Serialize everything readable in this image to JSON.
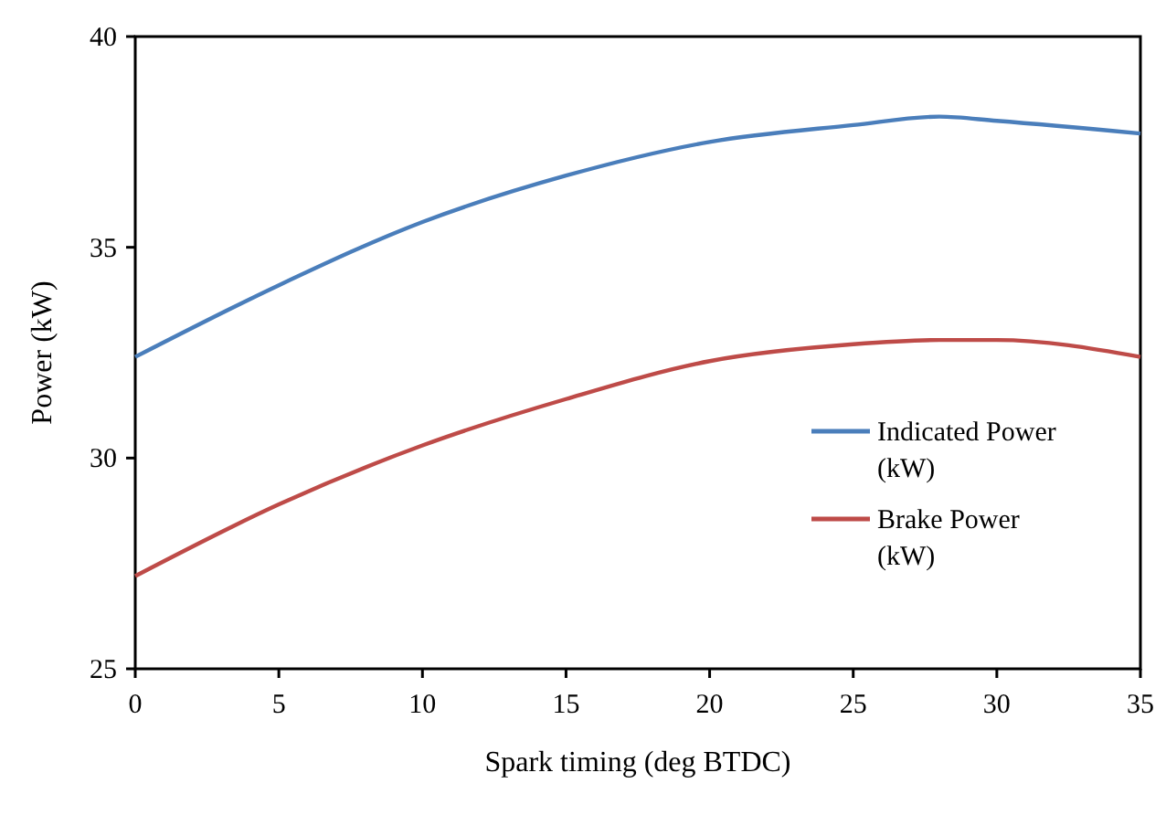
{
  "chart_data": {
    "type": "line",
    "xlabel": "Spark timing (deg BTDC)",
    "ylabel": "Power (kW)",
    "x": [
      0,
      5,
      10,
      15,
      20,
      25,
      28,
      30,
      35
    ],
    "series": [
      {
        "name": "Indicated Power (kW)",
        "color": "#4a7ebb",
        "values": [
          32.4,
          34.1,
          35.6,
          36.7,
          37.5,
          37.9,
          38.1,
          38.0,
          37.7
        ]
      },
      {
        "name": "Brake Power (kW)",
        "color": "#be4b48",
        "values": [
          27.2,
          28.9,
          30.3,
          31.4,
          32.3,
          32.7,
          32.8,
          32.8,
          32.4
        ]
      }
    ],
    "xlim": [
      0,
      35
    ],
    "xticks": [
      0,
      5,
      10,
      15,
      20,
      25,
      30,
      35
    ],
    "ylim": [
      25,
      40
    ],
    "yticks": [
      25,
      30,
      35,
      40
    ],
    "grid": false,
    "legend": "bottom right",
    "marker": "none",
    "line_style": "solid"
  }
}
